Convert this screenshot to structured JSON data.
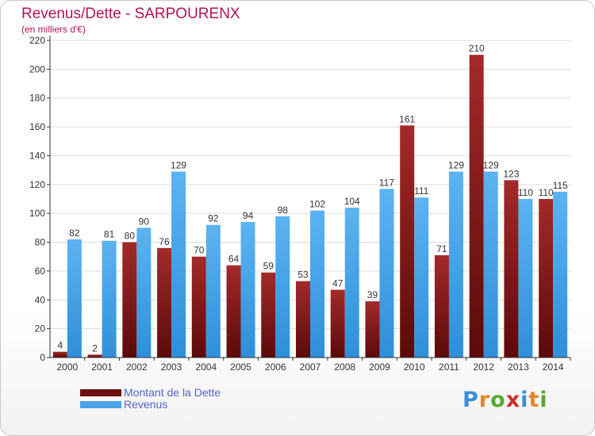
{
  "title": "Revenus/Dette - SARPOURENX",
  "subtitle": "(en milliers d'€)",
  "colors": {
    "dette": "#7a1414",
    "dette_light": "#a32a2a",
    "revenus": "#4aa3e6",
    "revenus_light": "#63b5f0",
    "axis": "#333333",
    "grid": "#dcdcdc",
    "title": "#b5134f",
    "legend_text": "#5564c8"
  },
  "legend": [
    {
      "label": "Montant de la Dette",
      "color": "#6b0f0f"
    },
    {
      "label": "Revenus",
      "color": "#4aa3e6"
    }
  ],
  "logo": {
    "text": "Proxiti",
    "letters": [
      "P",
      "r",
      "o",
      "x",
      "i",
      "t",
      "i"
    ],
    "letter_colors": [
      "#3a8fd6",
      "#e8842a",
      "#5aa832",
      "#d22b2b",
      "#3a8fd6",
      "#e8842a",
      "#5aa832"
    ]
  },
  "chart_data": {
    "type": "bar",
    "categories": [
      "2000",
      "2001",
      "2002",
      "2003",
      "2004",
      "2005",
      "2006",
      "2007",
      "2008",
      "2009",
      "2010",
      "2011",
      "2012",
      "2013",
      "2014"
    ],
    "series": [
      {
        "name": "Montant de la Dette",
        "values": [
          4,
          2,
          80,
          76,
          70,
          64,
          59,
          53,
          47,
          39,
          161,
          71,
          210,
          123,
          110
        ]
      },
      {
        "name": "Revenus",
        "values": [
          82,
          81,
          90,
          129,
          92,
          94,
          98,
          102,
          104,
          117,
          111,
          129,
          129,
          110,
          115
        ]
      }
    ],
    "ylim": [
      0,
      220
    ],
    "yticks": [
      0,
      20,
      40,
      60,
      80,
      100,
      120,
      140,
      160,
      180,
      200,
      220
    ],
    "grid": true,
    "legend_position": "bottom-left"
  }
}
